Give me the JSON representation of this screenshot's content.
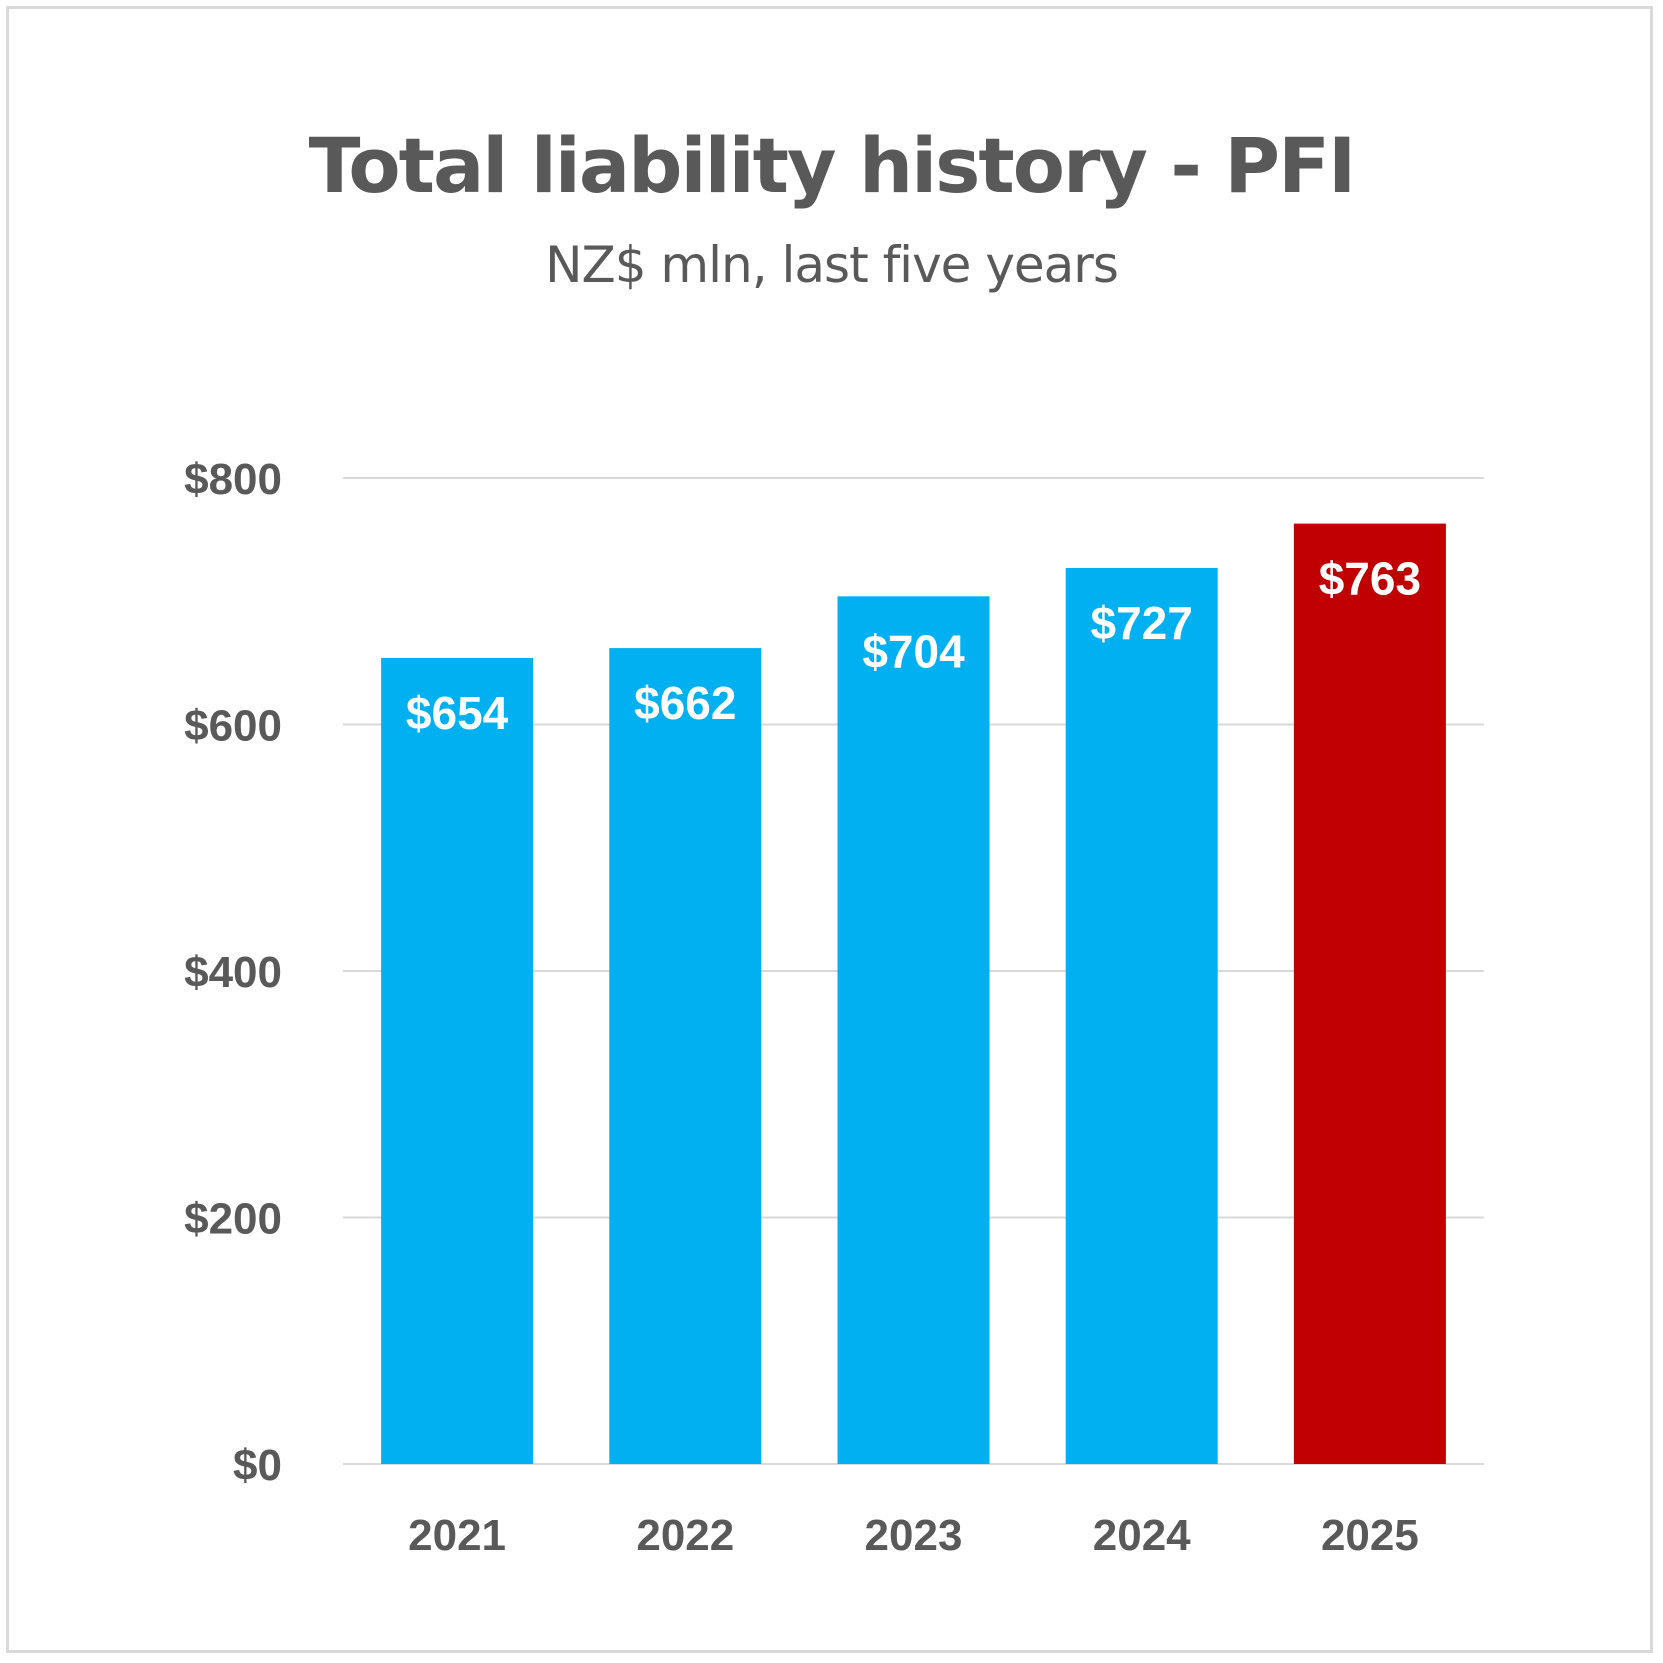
{
  "chart_data": {
    "type": "bar",
    "title": "Total liability history - PFI",
    "subtitle": "NZ$ mln, last five years",
    "categories": [
      "2021",
      "2022",
      "2023",
      "2024",
      "2025"
    ],
    "values": [
      654,
      662,
      704,
      727,
      763
    ],
    "data_labels": [
      "$654",
      "$662",
      "$704",
      "$727",
      "$763"
    ],
    "ylim": [
      0,
      800
    ],
    "yticks": [
      0,
      200,
      400,
      600,
      800
    ],
    "ytick_labels": [
      "$0",
      "$200",
      "$400",
      "$600",
      "$800"
    ],
    "grid": true,
    "legend": "none",
    "colors": {
      "default_bar": "#00b0f0",
      "highlight_bar": "#c00000",
      "text": "#595959",
      "grid": "#d9d9d9"
    },
    "highlight_index": 4
  }
}
